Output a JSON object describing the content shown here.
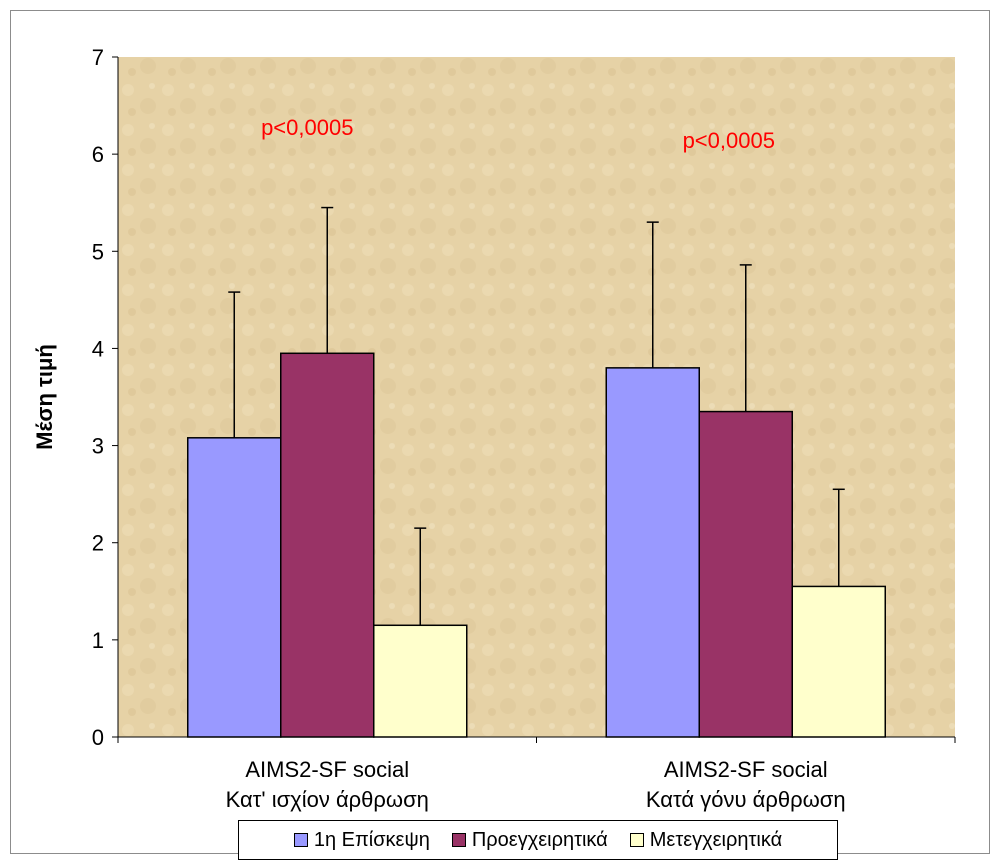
{
  "chart_data": {
    "type": "bar",
    "ylabel": "Μέση τιμή",
    "ylim": [
      0,
      7
    ],
    "yticks": [
      "0",
      "1",
      "2",
      "3",
      "4",
      "5",
      "6",
      "7"
    ],
    "categories": [
      [
        "AIMS2-SF social",
        "Κατ' ισχίον άρθρωση"
      ],
      [
        "AIMS2-SF social",
        "Κατά γόνυ άρθρωση"
      ]
    ],
    "series": [
      {
        "name": "1η Επίσκεψη",
        "color": "#9999ff",
        "values": [
          3.08,
          3.8
        ],
        "errors": [
          1.5,
          1.5
        ]
      },
      {
        "name": "Προεγχειρητικά",
        "color": "#993366",
        "values": [
          3.95,
          3.35
        ],
        "errors": [
          1.5,
          1.51
        ]
      },
      {
        "name": "Μετεγχειρητικά",
        "color": "#ffffcc",
        "values": [
          1.15,
          1.55
        ],
        "errors": [
          1.0,
          1.0
        ]
      }
    ],
    "annotations": [
      "p<0,0005",
      "p<0,0005"
    ],
    "legend_position": "bottom",
    "background": "textured tan",
    "grid": false
  }
}
